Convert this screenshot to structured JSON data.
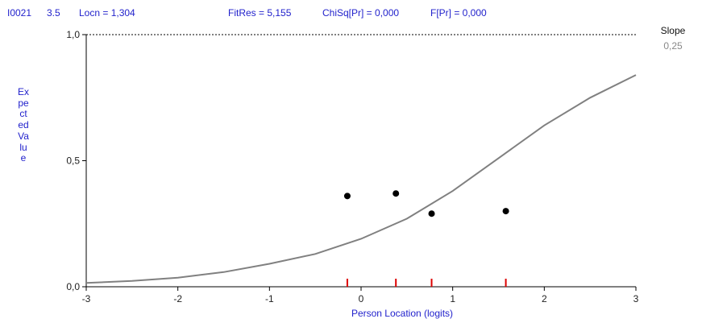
{
  "header": {
    "item": "I0021",
    "thresh": "3.5",
    "locn": "Locn = 1,304",
    "fitres": "FitRes = 5,155",
    "chisq": "ChiSq[Pr] = 0,000",
    "fpr": "F[Pr] = 0,000"
  },
  "slope": {
    "label": "Slope",
    "value": "0,25"
  },
  "colors": {
    "header_text": "#2222cc",
    "curve": "#808080",
    "points": "#000000",
    "class_marks": "#dd0000",
    "axes": "#000000"
  },
  "chart_data": {
    "type": "line",
    "title": "",
    "xlabel": "Person Location (logits)",
    "ylabel": "Expected Value",
    "xlim": [
      -3,
      3
    ],
    "ylim": [
      0,
      1
    ],
    "x_ticks": [
      -3,
      -2,
      -1,
      0,
      1,
      2,
      3
    ],
    "x_tick_labels": [
      "-3",
      "-2",
      "-1",
      "0",
      "1",
      "2",
      "3"
    ],
    "y_ticks": [
      0,
      0.5,
      1
    ],
    "y_tick_labels": [
      "0,0",
      "0,5",
      "1,0"
    ],
    "grid": false,
    "reference_line": {
      "y": 1.0,
      "style": "dotted"
    },
    "series": [
      {
        "type": "line",
        "x": [
          -3,
          -2.5,
          -2,
          -1.5,
          -1,
          -0.5,
          0,
          0.5,
          1,
          1.5,
          2,
          2.5,
          3
        ],
        "values": [
          0.015,
          0.023,
          0.036,
          0.058,
          0.091,
          0.13,
          0.19,
          0.27,
          0.38,
          0.51,
          0.64,
          0.75,
          0.84
        ]
      },
      {
        "type": "scatter",
        "x": [
          -0.15,
          0.38,
          0.77,
          1.58
        ],
        "values": [
          0.36,
          0.37,
          0.29,
          0.3
        ]
      }
    ],
    "class_interval_marks": [
      -0.15,
      0.38,
      0.77,
      1.58
    ]
  }
}
